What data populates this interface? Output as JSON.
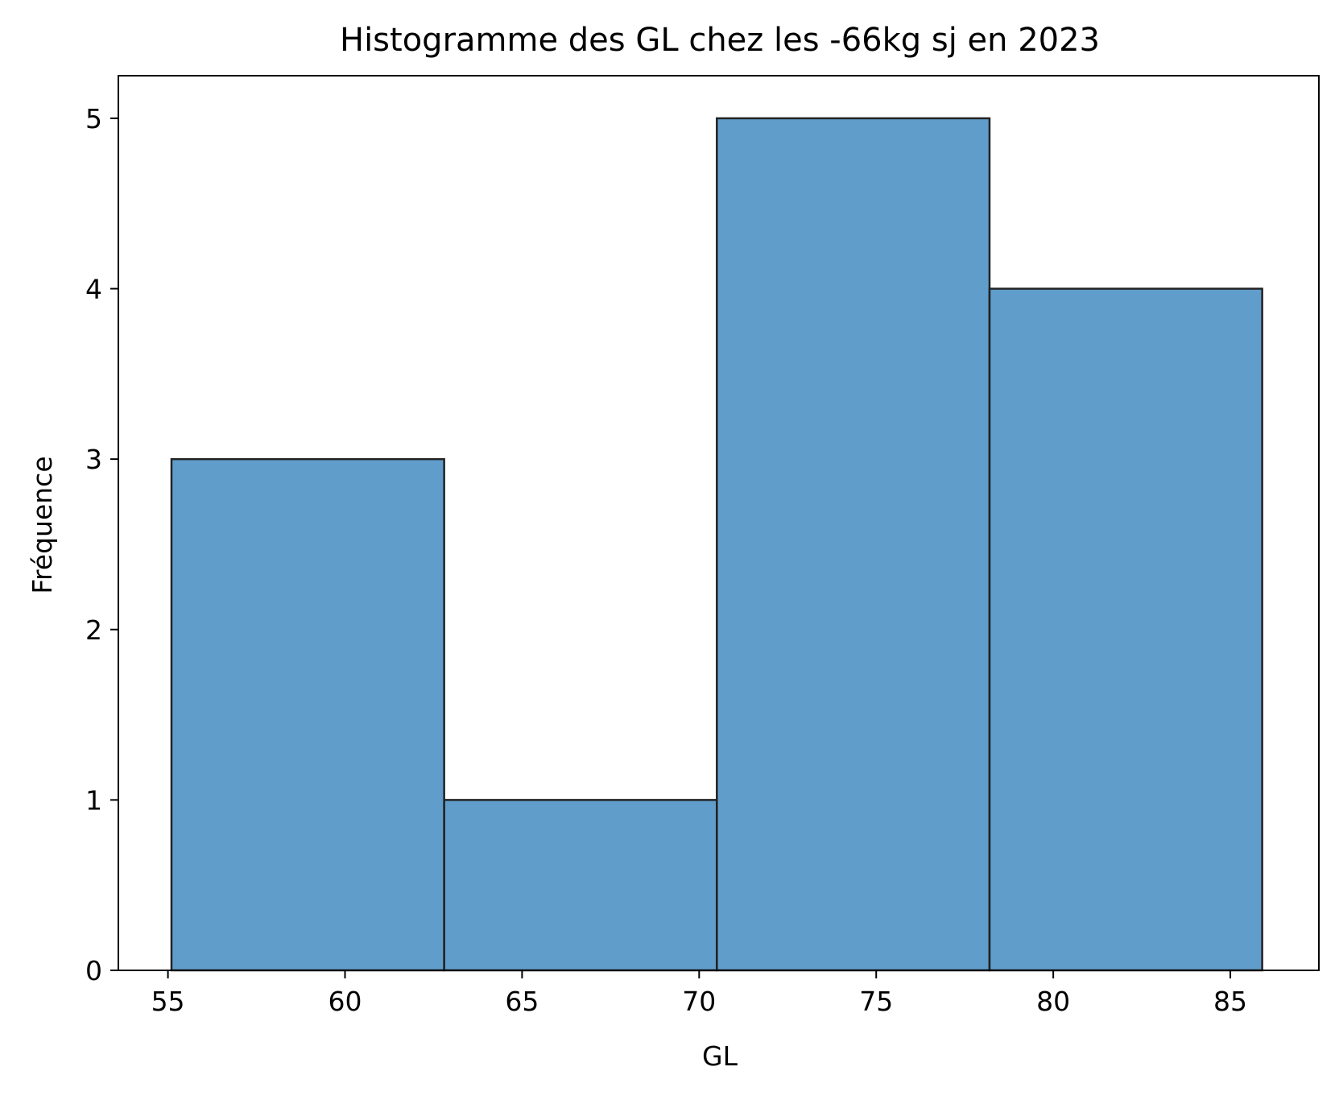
{
  "chart_data": {
    "type": "bar",
    "title": "Histogramme des GL chez les -66kg sj en 2023",
    "xlabel": "GL",
    "ylabel": "Fréquence",
    "bins": [
      {
        "start": 55.1,
        "end": 62.8,
        "count": 3
      },
      {
        "start": 62.8,
        "end": 70.5,
        "count": 1
      },
      {
        "start": 70.5,
        "end": 78.2,
        "count": 5
      },
      {
        "start": 78.2,
        "end": 85.9,
        "count": 4
      }
    ],
    "xlim": [
      53.6,
      87.5
    ],
    "ylim": [
      0,
      5.25
    ],
    "xticks": [
      55,
      60,
      65,
      70,
      75,
      80,
      85
    ],
    "yticks": [
      0,
      1,
      2,
      3,
      4,
      5
    ],
    "grid": false,
    "colors": {
      "bar_fill": "#3A84BE",
      "bar_fill_opacity": 0.8,
      "bar_edge": "#222222"
    }
  }
}
